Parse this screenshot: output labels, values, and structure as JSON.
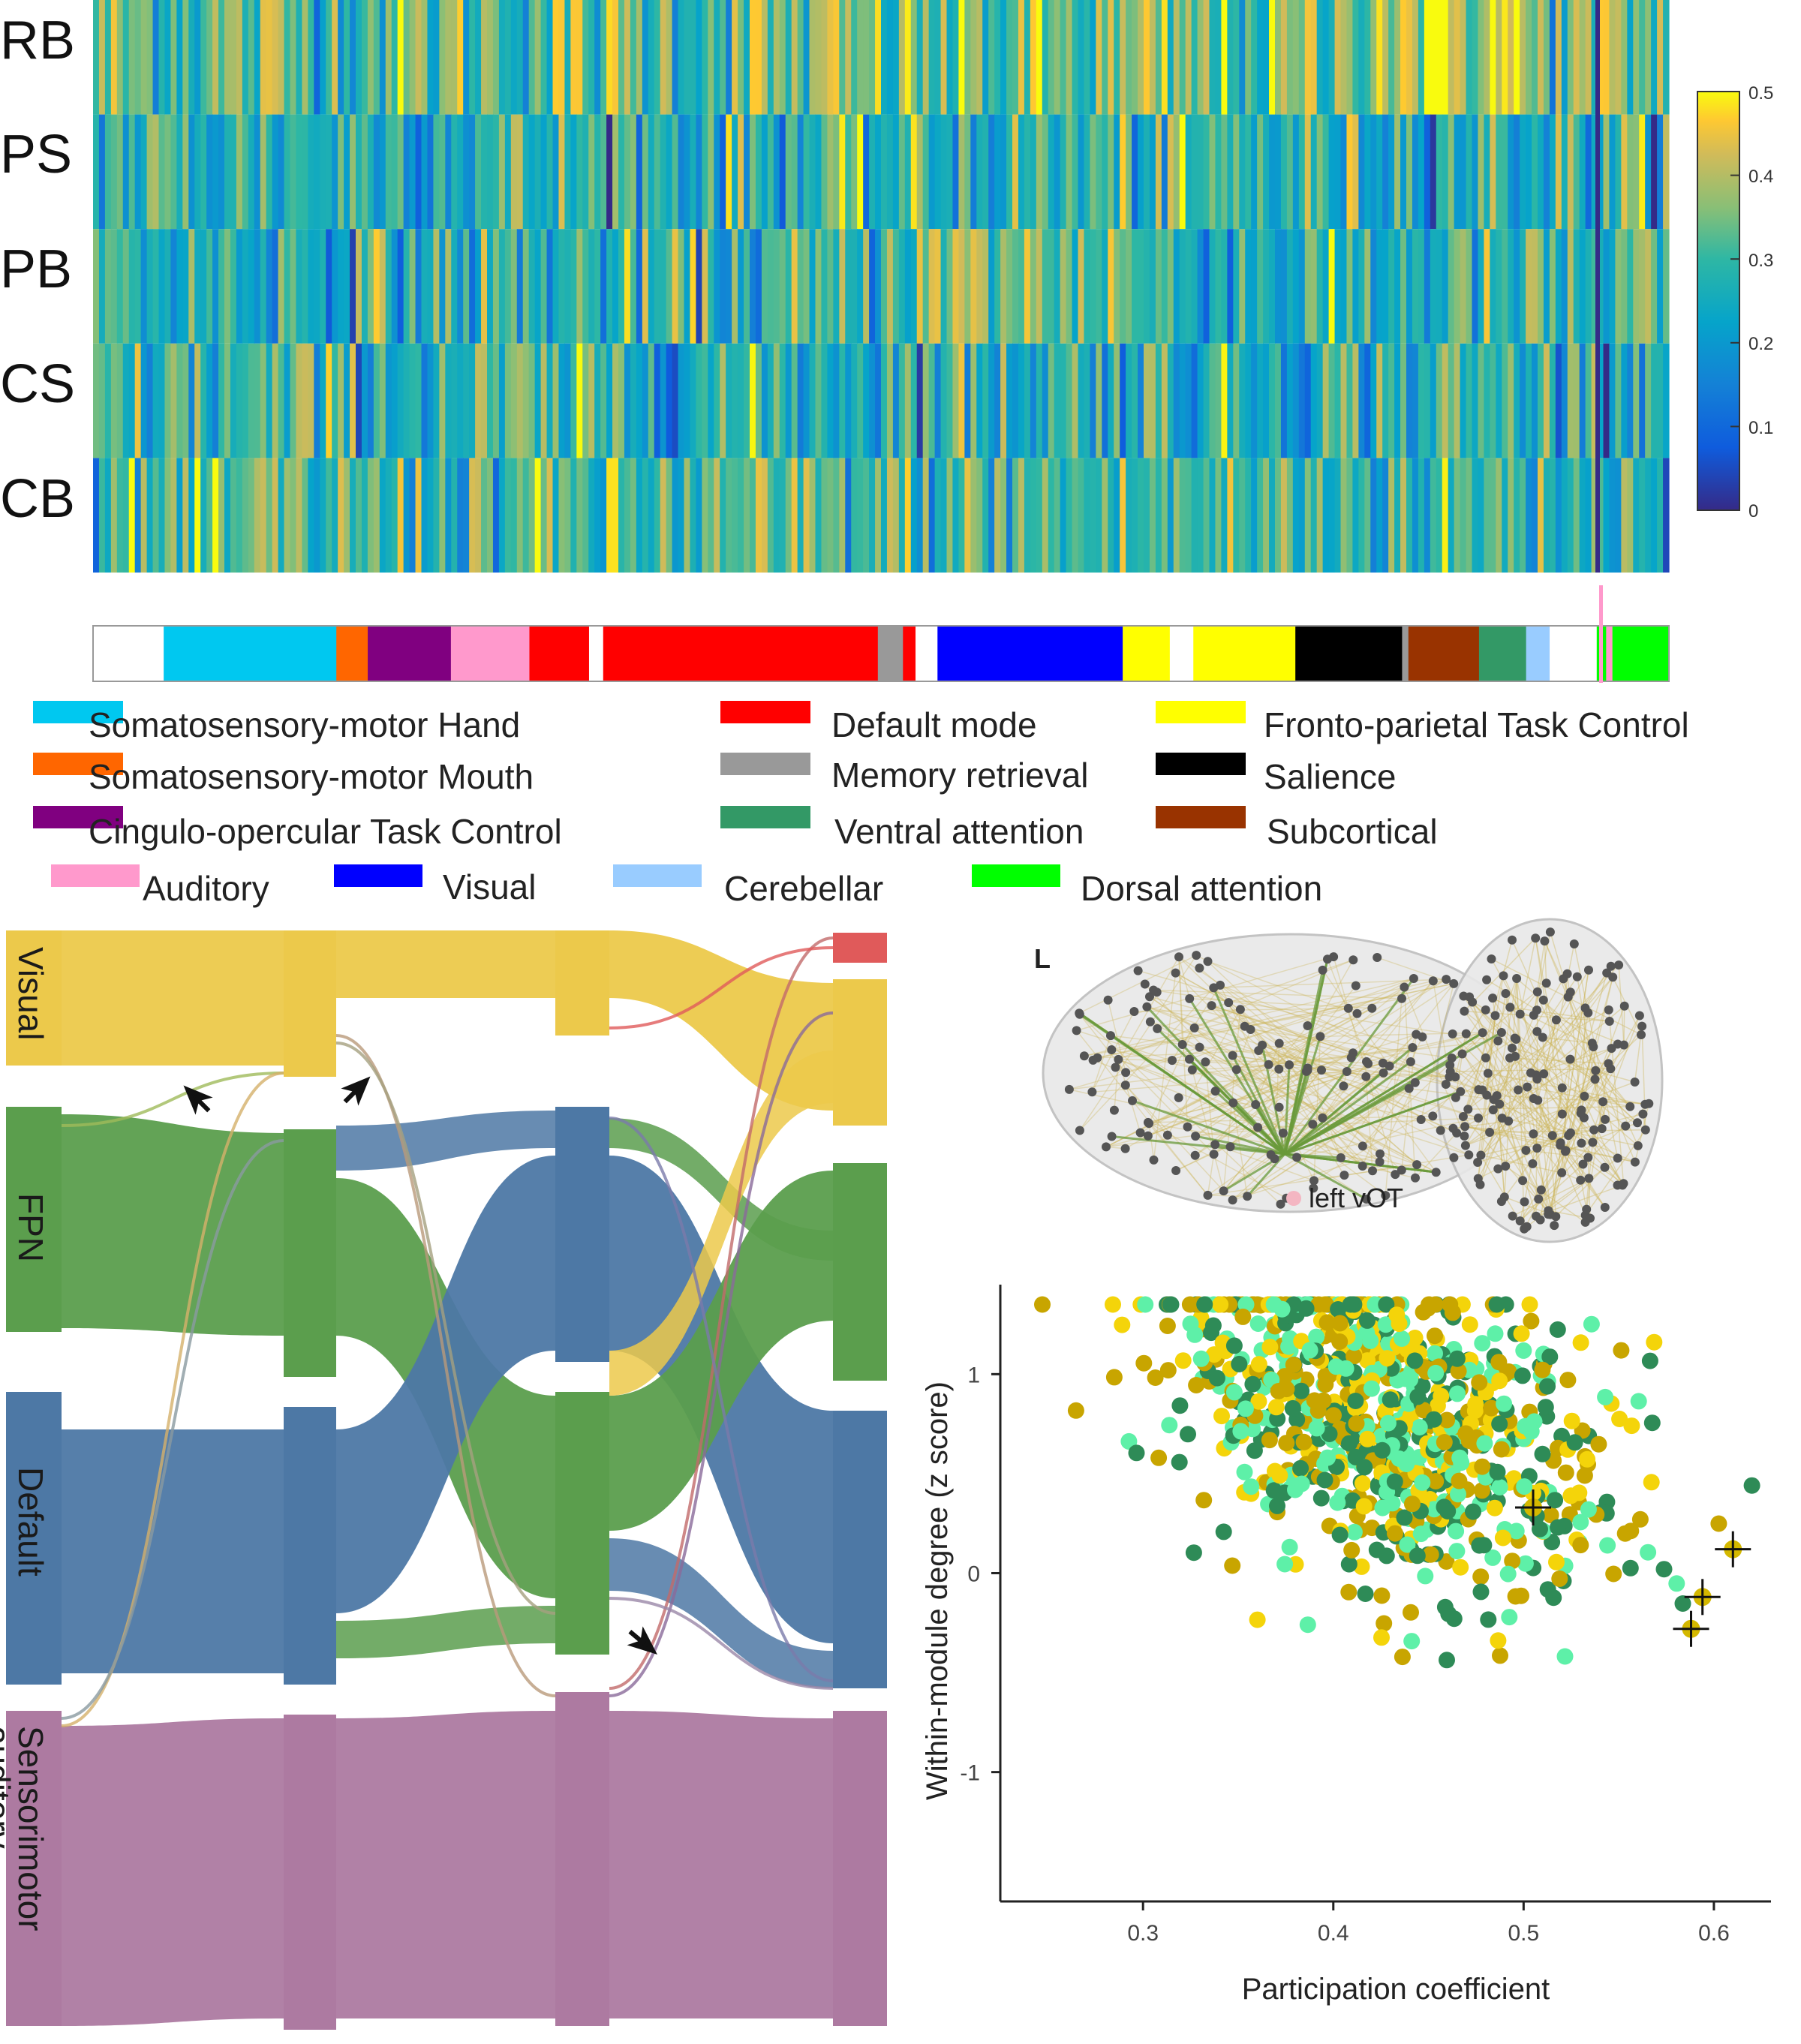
{
  "heatmap": {
    "rows": [
      "RB",
      "PS",
      "PB",
      "CS",
      "CB"
    ],
    "colorbar": {
      "ticks": [
        "0.5",
        "0.4",
        "0.3",
        "0.2",
        "0.1",
        "0"
      ],
      "min": 0,
      "max": 0.5
    }
  },
  "network_legend": [
    {
      "label": "Somatosensory-motor Hand",
      "color": "#00c8f0"
    },
    {
      "label": "Default mode",
      "color": "#ff0000"
    },
    {
      "label": "Fronto-parietal Task Control",
      "color": "#ffff00"
    },
    {
      "label": "Somatosensory-motor Mouth",
      "color": "#ff6600"
    },
    {
      "label": "Memory retrieval",
      "color": "#999999"
    },
    {
      "label": "Salience",
      "color": "#000000"
    },
    {
      "label": "Cingulo-opercular Task Control",
      "color": "#800080"
    },
    {
      "label": "Ventral attention",
      "color": "#339966"
    },
    {
      "label": "Subcortical",
      "color": "#993300"
    },
    {
      "label": "Auditory",
      "color": "#ff99cc"
    },
    {
      "label": "Visual",
      "color": "#0000ff"
    },
    {
      "label": "Cerebellar",
      "color": "#99ccff"
    },
    {
      "label": "Dorsal attention",
      "color": "#00ff00"
    }
  ],
  "network_bar": [
    {
      "network": "none",
      "color": "#ffffff",
      "share": 0.045
    },
    {
      "network": "Somatosensory-motor Hand",
      "color": "#00c8f0",
      "share": 0.11
    },
    {
      "network": "Somatosensory-motor Mouth",
      "color": "#ff6600",
      "share": 0.02
    },
    {
      "network": "Cingulo-opercular Task Control",
      "color": "#800080",
      "share": 0.053
    },
    {
      "network": "Auditory",
      "color": "#ff99cc",
      "share": 0.05
    },
    {
      "network": "Default mode",
      "color": "#ff0000",
      "share": 0.038
    },
    {
      "network": "none",
      "color": "#ffffff",
      "share": 0.009
    },
    {
      "network": "Default mode",
      "color": "#ff0000",
      "share": 0.175
    },
    {
      "network": "Memory retrieval",
      "color": "#999999",
      "share": 0.016
    },
    {
      "network": "Default mode",
      "color": "#ff0000",
      "share": 0.008
    },
    {
      "network": "none",
      "color": "#ffffff",
      "share": 0.014
    },
    {
      "network": "Visual",
      "color": "#0000ff",
      "share": 0.118
    },
    {
      "network": "Fronto-parietal Task Control",
      "color": "#ffff00",
      "share": 0.03
    },
    {
      "network": "none",
      "color": "#ffffff",
      "share": 0.015
    },
    {
      "network": "Fronto-parietal Task Control",
      "color": "#ffff00",
      "share": 0.065
    },
    {
      "network": "Salience",
      "color": "#000000",
      "share": 0.068
    },
    {
      "network": "Memory retrieval",
      "color": "#999999",
      "share": 0.004
    },
    {
      "network": "Subcortical",
      "color": "#993300",
      "share": 0.045
    },
    {
      "network": "Ventral attention",
      "color": "#339966",
      "share": 0.03
    },
    {
      "network": "Cerebellar",
      "color": "#99ccff",
      "share": 0.015
    },
    {
      "network": "none",
      "color": "#ffffff",
      "share": 0.03
    },
    {
      "network": "Dorsal attention",
      "color": "#00ff00",
      "share": 0.006
    },
    {
      "network": "Auditory",
      "color": "#ff99cc",
      "share": 0.004
    },
    {
      "network": "Dorsal attention",
      "color": "#00ff00",
      "share": 0.036
    }
  ],
  "alluvial": {
    "modules": [
      "Visual",
      "FPN",
      "Default",
      "Sensorimotor\nauditory"
    ],
    "colors": {
      "Visual": "#ecc94b",
      "FPN": "#5b9e4d",
      "Default": "#4d78a5",
      "Sensorimotor": "#ad7aa1",
      "extra": "#e05a5a"
    }
  },
  "brain": {
    "hemisphere_label": "L",
    "seed_label": "left vOT",
    "seed_color": "#f4b6c2"
  },
  "scatter": {
    "xlabel": "Participation coefficient",
    "ylabel": "Within-module degree (z score)",
    "xticks": [
      "0.3",
      "0.4",
      "0.5",
      "0.6"
    ],
    "yticks": [
      "1",
      "0",
      "-1"
    ],
    "xlim": [
      0.225,
      0.63
    ],
    "ylim": [
      -1.65,
      1.45
    ],
    "series_colors": [
      "#2e8b57",
      "#5ef0a8",
      "#f4d40a",
      "#c8a500"
    ],
    "highlighted": [
      {
        "x": 0.505,
        "y": 0.33
      },
      {
        "x": 0.61,
        "y": 0.12
      },
      {
        "x": 0.594,
        "y": -0.12
      },
      {
        "x": 0.588,
        "y": -0.28
      }
    ]
  }
}
